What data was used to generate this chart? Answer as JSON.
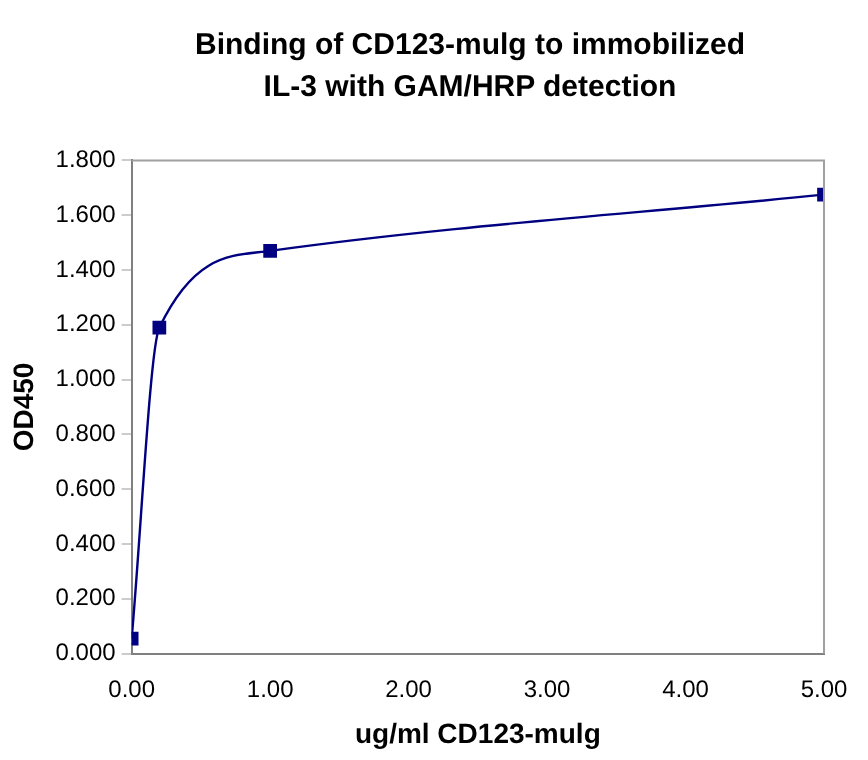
{
  "chart_data": {
    "type": "line",
    "title": "Binding of CD123-mulg to immobilized IL-3 with GAM/HRP detection",
    "xlabel": "ug/ml CD123-mulg",
    "ylabel": "OD450",
    "x": [
      0,
      0.2,
      1,
      5
    ],
    "series": [
      {
        "color": "#000080",
        "values": [
          0.055,
          1.19,
          1.47,
          1.675
        ]
      }
    ],
    "xlim": [
      0,
      5
    ],
    "xticks": [
      {
        "value": 0,
        "label": "0.00"
      },
      {
        "value": 1,
        "label": "1.00"
      },
      {
        "value": 2,
        "label": "2.00"
      },
      {
        "value": 3,
        "label": "3.00"
      },
      {
        "value": 4,
        "label": "4.00"
      },
      {
        "value": 5,
        "label": "5.00"
      }
    ],
    "ylim": [
      0,
      1.8
    ],
    "yticks": [
      {
        "value": 0,
        "label": "0.000"
      },
      {
        "value": 0.2,
        "label": "0.200"
      },
      {
        "value": 0.4,
        "label": "0.400"
      },
      {
        "value": 0.6,
        "label": "0.600"
      },
      {
        "value": 0.8,
        "label": "0.800"
      },
      {
        "value": 1,
        "label": "1.000"
      },
      {
        "value": 1.2,
        "label": "1.200"
      },
      {
        "value": 1.4,
        "label": "1.400"
      },
      {
        "value": 1.6,
        "label": "1.600"
      },
      {
        "value": 1.8,
        "label": "1.800"
      }
    ],
    "grid": false,
    "legend": false,
    "marker": "square",
    "line_style": "solid"
  }
}
